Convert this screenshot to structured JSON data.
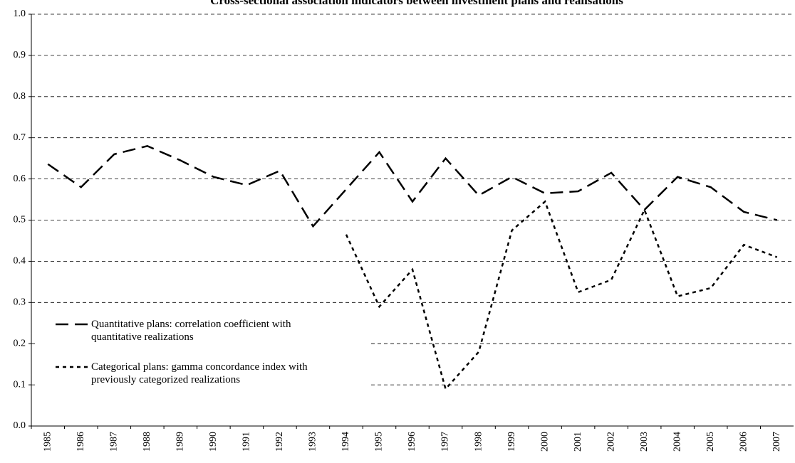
{
  "chart_data": {
    "type": "line",
    "title": "Cross-sectional association indicators between investment plans and realisations",
    "categories": [
      "1985",
      "1986",
      "1987",
      "1988",
      "1989",
      "1990",
      "1991",
      "1992",
      "1993",
      "1994",
      "1995",
      "1996",
      "1997",
      "1998",
      "1999",
      "2000",
      "2001",
      "2002",
      "2003",
      "2004",
      "2005",
      "2006",
      "2007"
    ],
    "series": [
      {
        "name": "Quantitative plans: correlation coefficient with quantitative realizations",
        "color": "#000000",
        "line_style": "dashed",
        "values": [
          0.636,
          0.58,
          0.66,
          0.68,
          0.645,
          0.605,
          0.585,
          0.62,
          0.485,
          0.575,
          0.665,
          0.545,
          0.65,
          0.56,
          0.605,
          0.565,
          0.57,
          0.615,
          0.525,
          0.605,
          0.58,
          0.52,
          0.5
        ]
      },
      {
        "name": "Categorical plans: gamma concordance index with previously categorized realizations",
        "color": "#000000",
        "line_style": "dotted",
        "values": [
          null,
          null,
          null,
          null,
          null,
          null,
          null,
          null,
          null,
          0.465,
          0.29,
          0.38,
          0.09,
          0.18,
          0.475,
          0.545,
          0.325,
          0.355,
          0.525,
          0.315,
          0.335,
          0.44,
          0.41
        ]
      }
    ],
    "ylim": [
      0,
      1
    ],
    "yticks": [
      {
        "value": 0,
        "label": "0.0"
      },
      0.1,
      0.2,
      0.3,
      0.4,
      0.5,
      0.6,
      0.7,
      0.8,
      0.9,
      {
        "value": 1,
        "label": "1.0"
      }
    ],
    "grid": true,
    "legend": "lower left"
  }
}
